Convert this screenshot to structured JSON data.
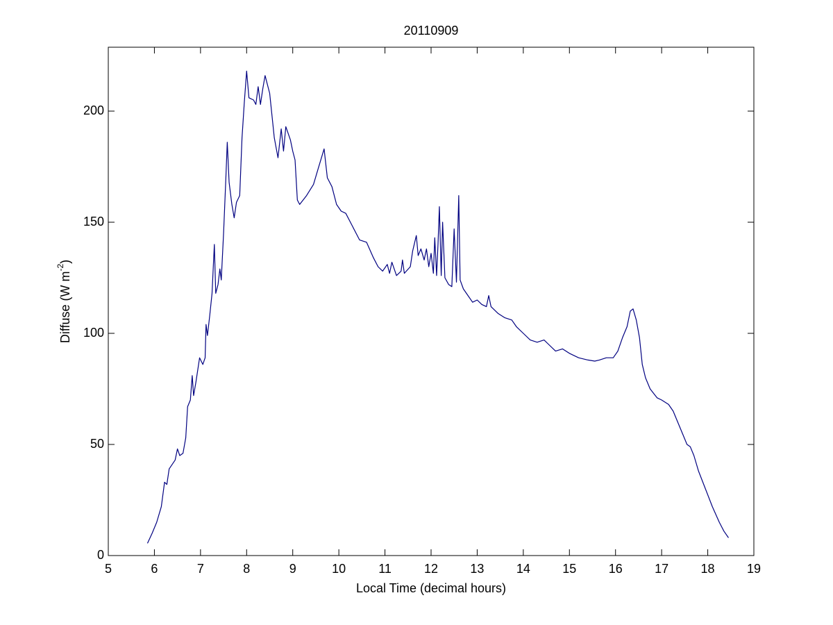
{
  "chart_data": {
    "type": "line",
    "title": "20110909",
    "xlabel": "Local Time (decimal hours)",
    "ylabel_parts": [
      "Diffuse (W m",
      "-2",
      ")"
    ],
    "color": "#000080",
    "x": [
      5.85,
      5.95,
      6.05,
      6.15,
      6.22,
      6.27,
      6.32,
      6.45,
      6.5,
      6.55,
      6.62,
      6.68,
      6.72,
      6.78,
      6.82,
      6.85,
      6.9,
      6.98,
      7.05,
      7.1,
      7.12,
      7.15,
      7.2,
      7.25,
      7.3,
      7.33,
      7.38,
      7.42,
      7.45,
      7.5,
      7.55,
      7.58,
      7.62,
      7.68,
      7.73,
      7.78,
      7.85,
      7.9,
      7.95,
      8.0,
      8.05,
      8.15,
      8.2,
      8.25,
      8.3,
      8.35,
      8.4,
      8.5,
      8.55,
      8.6,
      8.68,
      8.75,
      8.8,
      8.85,
      8.95,
      9.0,
      9.05,
      9.1,
      9.15,
      9.3,
      9.45,
      9.55,
      9.68,
      9.75,
      9.85,
      9.95,
      10.05,
      10.15,
      10.3,
      10.45,
      10.6,
      10.75,
      10.85,
      10.95,
      11.05,
      11.1,
      11.15,
      11.25,
      11.35,
      11.38,
      11.42,
      11.55,
      11.6,
      11.68,
      11.72,
      11.78,
      11.85,
      11.9,
      11.95,
      12.0,
      12.05,
      12.08,
      12.12,
      12.15,
      12.18,
      12.22,
      12.25,
      12.3,
      12.38,
      12.45,
      12.5,
      12.55,
      12.6,
      12.63,
      12.7,
      12.8,
      12.9,
      13.0,
      13.1,
      13.2,
      13.25,
      13.3,
      13.45,
      13.6,
      13.75,
      13.85,
      14.0,
      14.15,
      14.3,
      14.45,
      14.55,
      14.7,
      14.85,
      15.0,
      15.2,
      15.4,
      15.55,
      15.65,
      15.8,
      15.95,
      16.05,
      16.15,
      16.25,
      16.32,
      16.38,
      16.45,
      16.52,
      16.58,
      16.65,
      16.75,
      16.9,
      17.0,
      17.15,
      17.25,
      17.35,
      17.45,
      17.55,
      17.62,
      17.7,
      17.8,
      17.95,
      18.1,
      18.25,
      18.35,
      18.45
    ],
    "values": [
      5.5,
      10,
      15,
      22,
      33,
      32,
      39,
      43,
      48,
      45,
      46,
      53,
      67,
      70,
      81,
      72,
      78,
      89,
      86,
      89,
      104,
      99,
      108,
      118,
      140,
      118,
      122,
      129,
      124,
      145,
      170,
      186,
      168,
      158,
      152,
      159,
      162,
      188,
      204,
      218,
      206,
      205,
      203,
      211,
      203,
      210,
      216,
      208,
      198,
      188,
      179,
      192,
      182,
      193,
      187,
      182,
      178,
      160,
      158,
      162,
      167,
      174,
      183,
      170,
      166,
      158,
      155,
      154,
      148,
      142,
      141,
      134,
      130,
      128,
      131,
      127,
      132,
      126,
      128,
      133,
      127,
      130,
      137,
      144,
      135,
      138,
      133,
      138,
      130,
      136,
      127,
      143,
      126,
      140,
      157,
      126,
      150,
      125,
      122,
      121,
      147,
      123,
      162,
      124,
      120,
      117,
      114,
      115,
      113,
      112,
      117,
      112,
      109,
      107,
      106,
      103,
      100,
      97,
      96,
      97,
      95,
      92,
      93,
      91,
      89,
      88,
      87.5,
      88,
      89,
      89,
      92,
      98,
      103,
      110,
      111,
      106,
      98,
      86,
      80,
      75,
      71,
      70,
      68,
      65,
      60,
      55,
      50,
      49,
      45,
      38,
      30,
      22,
      15,
      11,
      8
    ],
    "xlim": [
      5,
      19
    ],
    "xticks": [
      5,
      6,
      7,
      8,
      9,
      10,
      11,
      12,
      13,
      14,
      15,
      16,
      17,
      18,
      19
    ],
    "ylim": [
      0,
      228.75
    ],
    "yticks": [
      0,
      50,
      100,
      150,
      200
    ]
  }
}
